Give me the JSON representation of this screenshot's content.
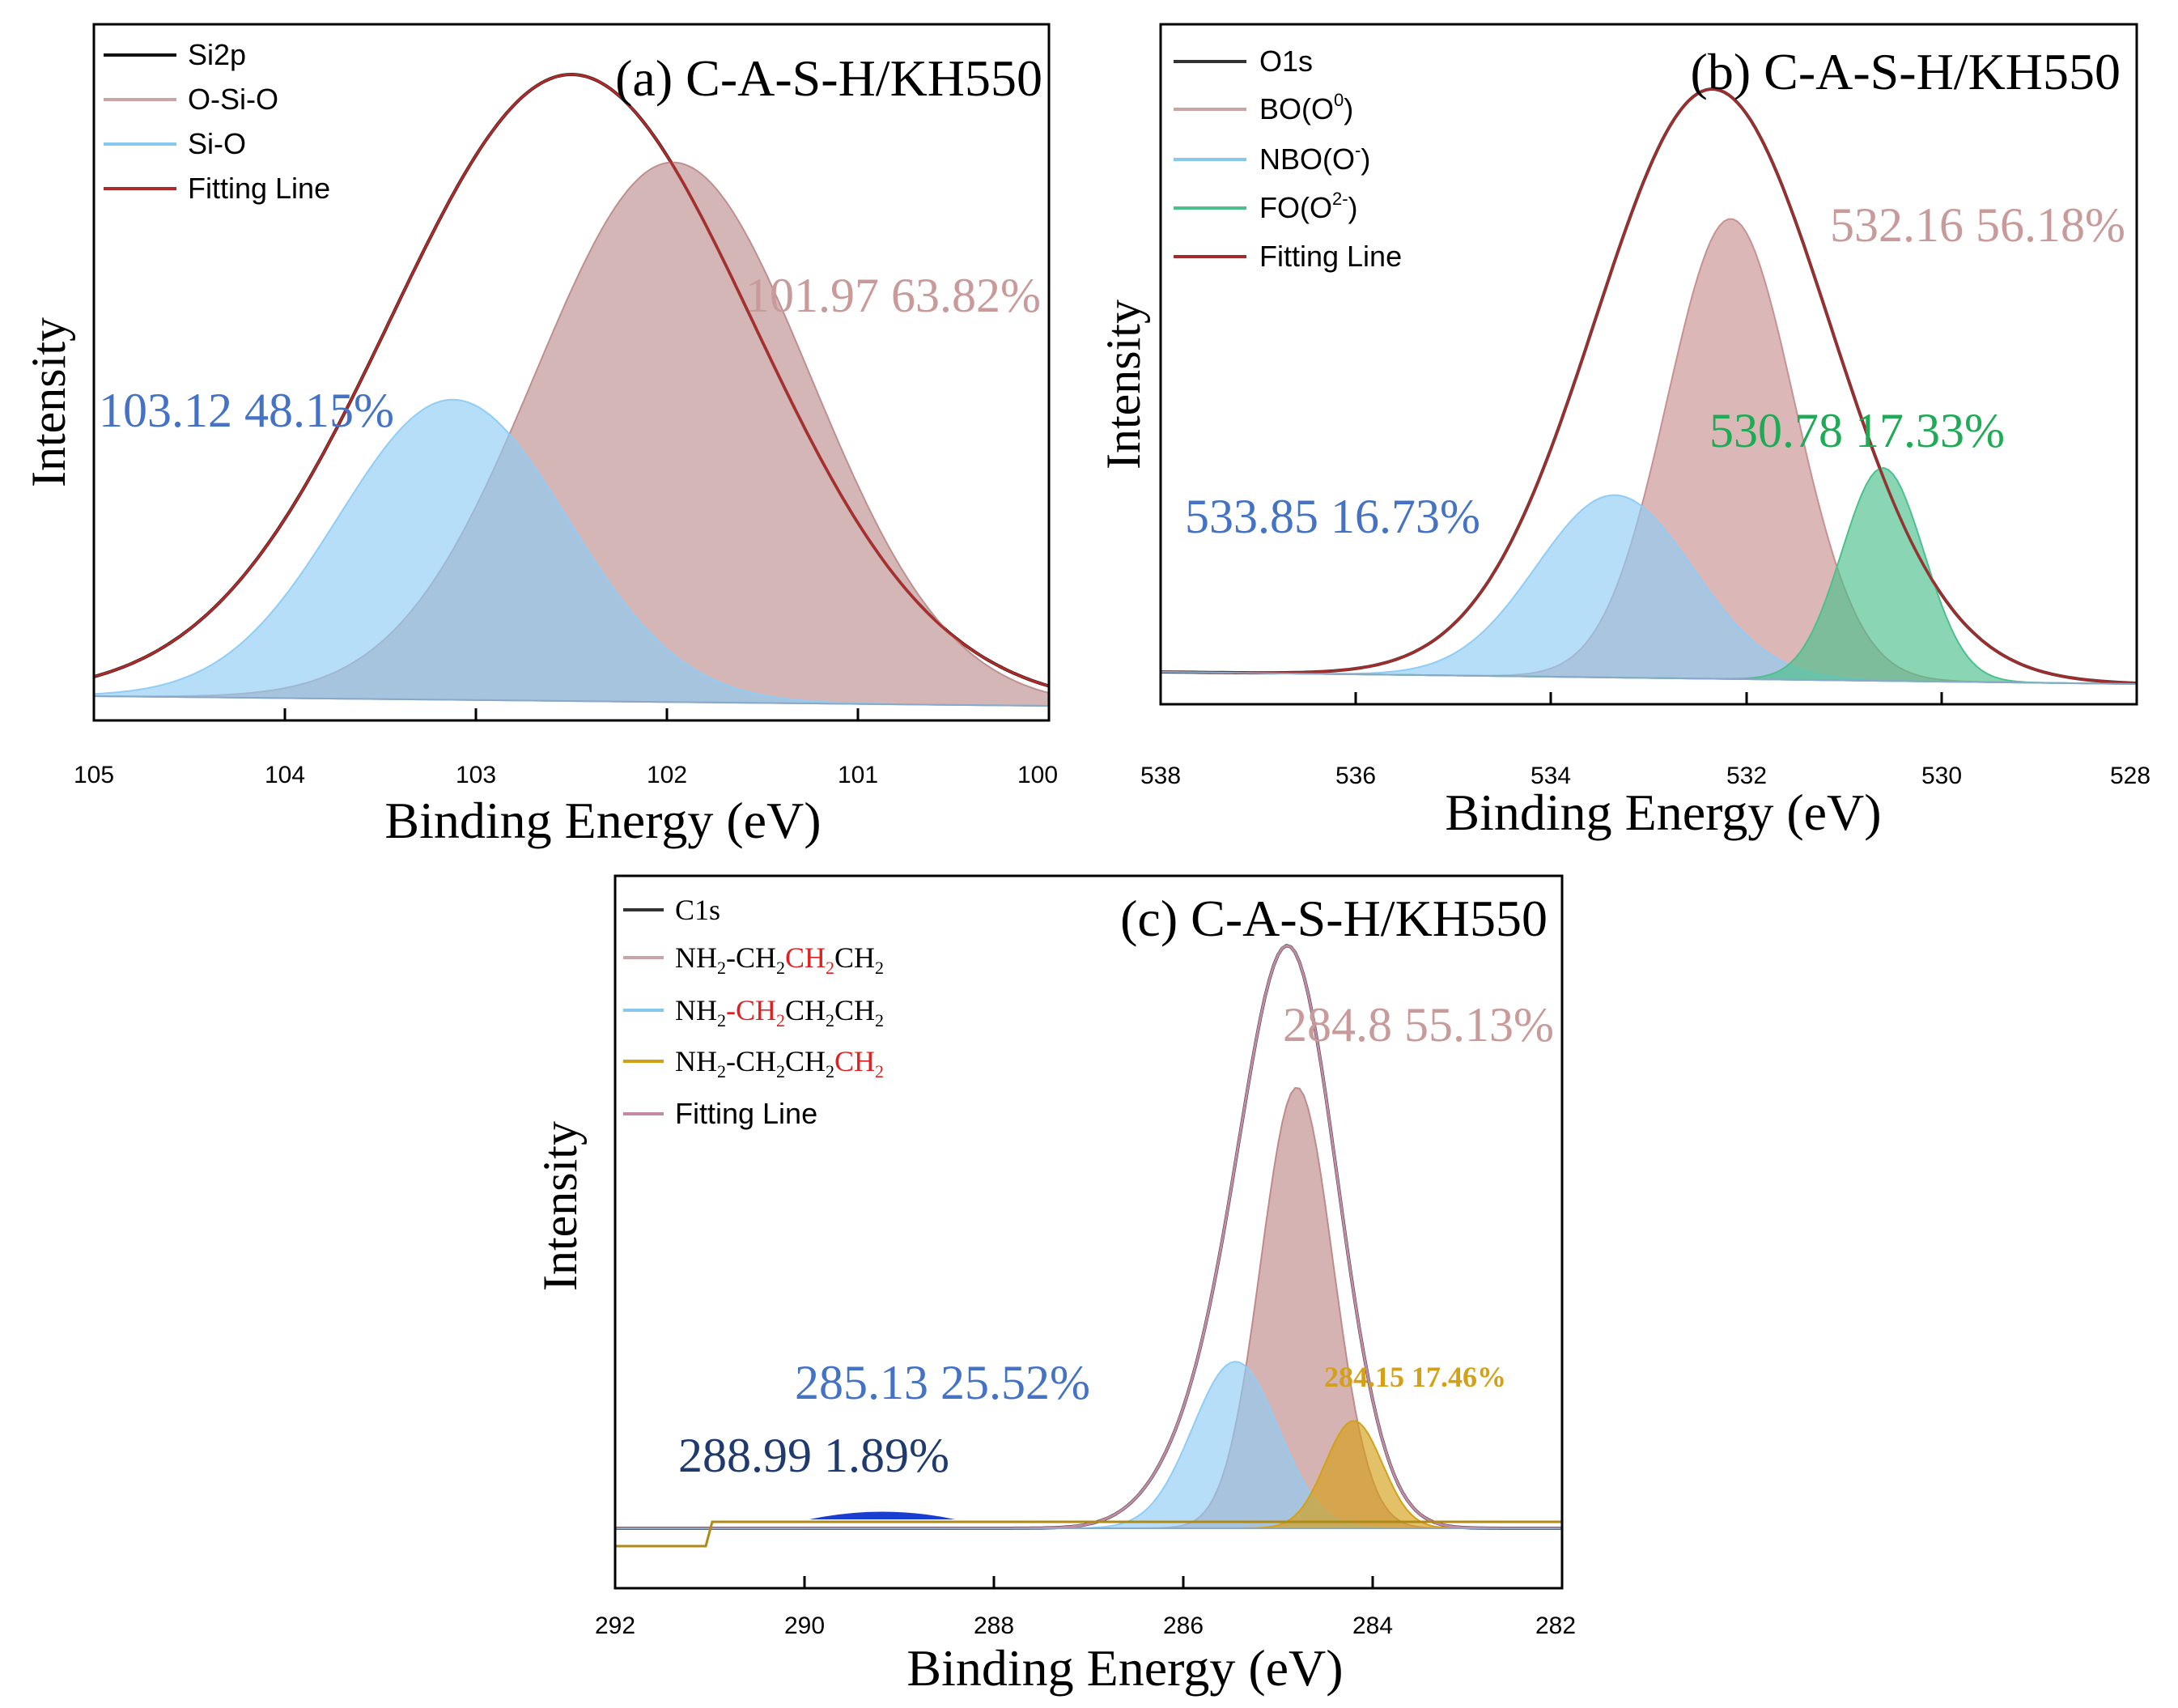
{
  "figure": {
    "panels": [
      {
        "id": "a",
        "title": "(a) C-A-S-H/KH550",
        "xlabel": "Binding Energy (eV)",
        "ylabel": "Intensity",
        "xticks": [
          "105",
          "104",
          "103",
          "102",
          "101",
          "100"
        ],
        "legend": [
          "Si2p",
          "O-Si-O",
          "Si-O",
          "Fitting Line"
        ],
        "annotations": [
          {
            "text": "101.97 63.82%",
            "color": "#c99a9a"
          },
          {
            "text": "103.12 48.15%",
            "color": "#4472c4"
          }
        ]
      },
      {
        "id": "b",
        "title": "(b) C-A-S-H/KH550",
        "xlabel": "Binding Energy (eV)",
        "ylabel": "Intensity",
        "xticks": [
          "538",
          "536",
          "534",
          "532",
          "530",
          "528"
        ],
        "legend": [
          "O1s",
          "BO(O",
          "NBO(O",
          "FO(O",
          "Fitting Line"
        ],
        "legend_sup": [
          "0",
          "-",
          "2-"
        ],
        "annotations": [
          {
            "text": "532.16 56.18%",
            "color": "#c99a9a"
          },
          {
            "text": "530.78 17.33%",
            "color": "#1faa55"
          },
          {
            "text": "533.85 16.73%",
            "color": "#4472c4"
          }
        ]
      },
      {
        "id": "c",
        "title": "(c) C-A-S-H/KH550",
        "xlabel": "Binding Energy (eV)",
        "ylabel": "Intensity",
        "xticks": [
          "292",
          "290",
          "288",
          "286",
          "284",
          "282"
        ],
        "legend": [
          "C1s",
          "NH",
          "2",
          "-CH",
          "2",
          "CH",
          "2",
          "CH",
          "2",
          "Fitting Line"
        ],
        "annotations": [
          {
            "text": "284.8 55.13%",
            "color": "#c99a9a"
          },
          {
            "text": "285.13 25.52%",
            "color": "#4472c4"
          },
          {
            "text": "284.15 17.46%",
            "color": "#d4a017"
          },
          {
            "text": "288.99 1.89%",
            "color": "#1f3a6e"
          }
        ]
      }
    ]
  },
  "chart_data": [
    {
      "type": "line",
      "title": "(a) C-A-S-H/KH550",
      "xlabel": "Binding Energy (eV)",
      "ylabel": "Intensity",
      "xlim": [
        105,
        100
      ],
      "x_reversed": true,
      "series": [
        {
          "name": "Si2p",
          "kind": "data",
          "peaks": [
            {
              "center": 102.5,
              "height": 1.0,
              "sigma": 0.95
            }
          ]
        },
        {
          "name": "O-Si-O",
          "kind": "fill",
          "peaks": [
            {
              "center": 101.97,
              "height": 0.86,
              "sigma": 0.72
            }
          ]
        },
        {
          "name": "Si-O",
          "kind": "fill",
          "peaks": [
            {
              "center": 103.12,
              "height": 0.48,
              "sigma": 0.6
            }
          ]
        },
        {
          "name": "Fitting Line",
          "kind": "fit",
          "peaks": [
            {
              "center": 102.5,
              "height": 1.0,
              "sigma": 0.95
            }
          ]
        }
      ],
      "peak_labels": [
        {
          "position": 101.97,
          "area_percent": 63.82
        },
        {
          "position": 103.12,
          "area_percent": 48.15
        }
      ]
    },
    {
      "type": "line",
      "title": "(b) C-A-S-H/KH550",
      "xlabel": "Binding Energy (eV)",
      "ylabel": "Intensity",
      "xlim": [
        538,
        528
      ],
      "x_reversed": true,
      "series": [
        {
          "name": "O1s",
          "kind": "data",
          "peaks": [
            {
              "center": 532.35,
              "height": 1.0,
              "sigma": 1.2
            }
          ]
        },
        {
          "name": "BO(O0)",
          "kind": "fill",
          "peaks": [
            {
              "center": 532.16,
              "height": 0.78,
              "sigma": 0.65
            }
          ]
        },
        {
          "name": "NBO(O-)",
          "kind": "fill",
          "peaks": [
            {
              "center": 533.35,
              "height": 0.31,
              "sigma": 0.8
            }
          ]
        },
        {
          "name": "FO(O2-)",
          "kind": "fill",
          "peaks": [
            {
              "center": 530.6,
              "height": 0.36,
              "sigma": 0.42
            }
          ]
        },
        {
          "name": "Fitting Line",
          "kind": "fit",
          "peaks": [
            {
              "center": 532.35,
              "height": 1.0,
              "sigma": 1.2
            }
          ]
        }
      ],
      "peak_labels": [
        {
          "position": 532.16,
          "area_percent": 56.18
        },
        {
          "position": 530.78,
          "area_percent": 17.33
        },
        {
          "position": 533.85,
          "area_percent": 16.73
        }
      ]
    },
    {
      "type": "line",
      "title": "(c) C-A-S-H/KH550",
      "xlabel": "Binding Energy (eV)",
      "ylabel": "Intensity",
      "xlim": [
        292,
        282
      ],
      "x_reversed": true,
      "series": [
        {
          "name": "C1s",
          "kind": "data",
          "peaks": [
            {
              "center": 284.85,
              "height": 1.0,
              "sigma": 0.5
            },
            {
              "center": 285.6,
              "height": 0.2,
              "sigma": 0.55
            }
          ]
        },
        {
          "name": "NH2-CH2CH2CH2",
          "kind": "fill",
          "peaks": [
            {
              "center": 284.8,
              "height": 0.82,
              "sigma": 0.38
            }
          ]
        },
        {
          "name": "NH2-CH2CH2CH2",
          "kind": "fill",
          "peaks": [
            {
              "center": 285.45,
              "height": 0.31,
              "sigma": 0.45
            }
          ]
        },
        {
          "name": "NH2-CH2CH2CH2",
          "kind": "fill",
          "peaks": [
            {
              "center": 284.2,
              "height": 0.2,
              "sigma": 0.3
            }
          ]
        },
        {
          "name": "Fitting Line",
          "kind": "fit",
          "peaks": [
            {
              "center": 284.85,
              "height": 1.0,
              "sigma": 0.5
            },
            {
              "center": 285.6,
              "height": 0.2,
              "sigma": 0.55
            }
          ]
        }
      ],
      "peak_labels": [
        {
          "position": 284.8,
          "area_percent": 55.13
        },
        {
          "position": 285.13,
          "area_percent": 25.52
        },
        {
          "position": 284.15,
          "area_percent": 17.46
        },
        {
          "position": 288.99,
          "area_percent": 1.89
        }
      ]
    }
  ]
}
